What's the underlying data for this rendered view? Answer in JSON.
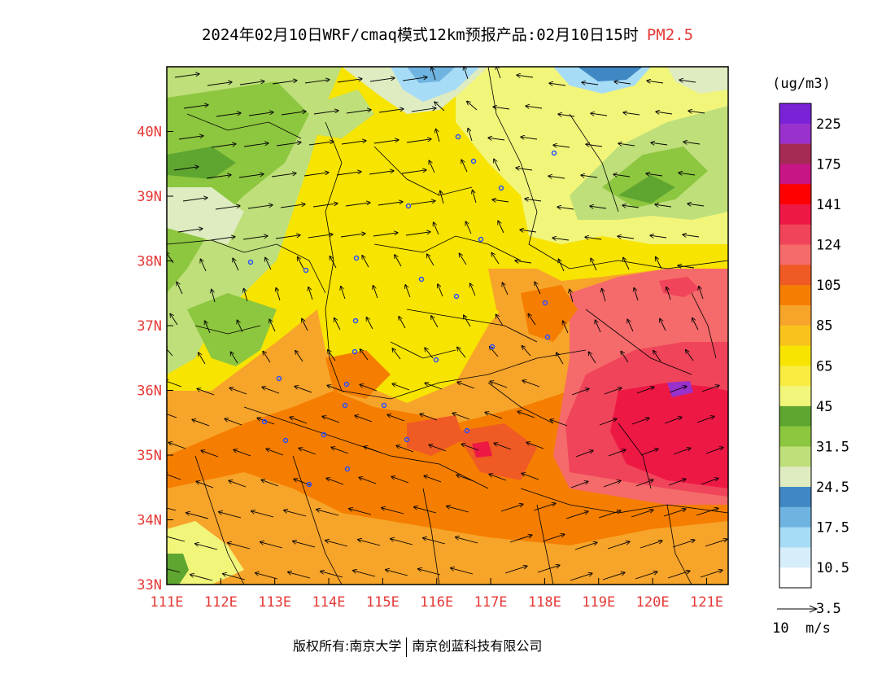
{
  "title": {
    "main": "2024年02月10日WRF/cmaq模式12km预报产品:02月10日15时",
    "pollutant": "PM2.5"
  },
  "map": {
    "lon_range": [
      111,
      121.4
    ],
    "lat_range": [
      33,
      41
    ],
    "x_ticks": [
      "111E",
      "112E",
      "113E",
      "114E",
      "115E",
      "116E",
      "117E",
      "118E",
      "119E",
      "120E",
      "121E"
    ],
    "y_ticks": [
      "33N",
      "34N",
      "35N",
      "36N",
      "37N",
      "38N",
      "39N",
      "40N"
    ]
  },
  "legend": {
    "unit": "(ug/m3)",
    "colors": [
      "#ffffff",
      "#d6eefa",
      "#a6dcf6",
      "#6fb3e0",
      "#3f88c3",
      "#dfecc1",
      "#bedf79",
      "#8dc63f",
      "#5ea630",
      "#f1f57a",
      "#f7ec3f",
      "#f7e400",
      "#f9c21d",
      "#f7a42a",
      "#f57e00",
      "#f05a24",
      "#f56a6a",
      "#f0445a",
      "#ee1845",
      "#ff0000",
      "#c71585",
      "#a52a54",
      "#9931cc",
      "#7a22d6"
    ],
    "labels": [
      "3.5",
      "10.5",
      "17.5",
      "24.5",
      "31.5",
      "45",
      "65",
      "85",
      "105",
      "124",
      "141",
      "175",
      "225"
    ]
  },
  "wind_scale": {
    "label": "10  m/s"
  },
  "copyright": {
    "left": "版权所有:南京大学",
    "right": "南京创蓝科技有限公司"
  }
}
